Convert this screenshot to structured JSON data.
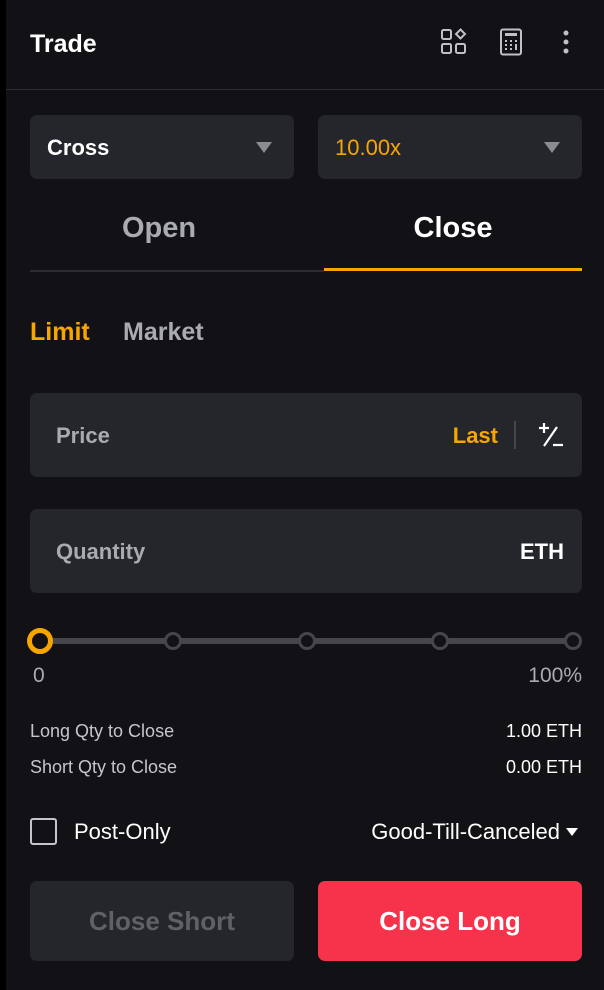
{
  "header": {
    "title": "Trade",
    "icons": [
      "layout-grid-icon",
      "calculator-icon",
      "more-vertical-icon"
    ]
  },
  "margin_mode": {
    "value": "Cross"
  },
  "leverage": {
    "value": "10.00x"
  },
  "tabs": [
    {
      "label": "Open",
      "active": false
    },
    {
      "label": "Close",
      "active": true
    }
  ],
  "order_types": [
    {
      "label": "Limit",
      "active": true
    },
    {
      "label": "Market",
      "active": false
    }
  ],
  "price": {
    "label": "Price",
    "last_label": "Last"
  },
  "quantity": {
    "label": "Quantity",
    "unit": "ETH"
  },
  "slider": {
    "value_percent": 0,
    "min_label": "0",
    "max_label": "100%"
  },
  "info": [
    {
      "label": "Long Qty to Close",
      "value": "1.00 ETH"
    },
    {
      "label": "Short Qty to Close",
      "value": "0.00 ETH"
    }
  ],
  "post_only": {
    "label": "Post-Only",
    "checked": false
  },
  "time_in_force": {
    "value": "Good-Till-Canceled"
  },
  "buttons": {
    "close_short": "Close Short",
    "close_long": "Close Long"
  },
  "colors": {
    "accent": "#f7a600",
    "sell": "#f6334a",
    "background": "#121216",
    "card": "#24262b"
  }
}
